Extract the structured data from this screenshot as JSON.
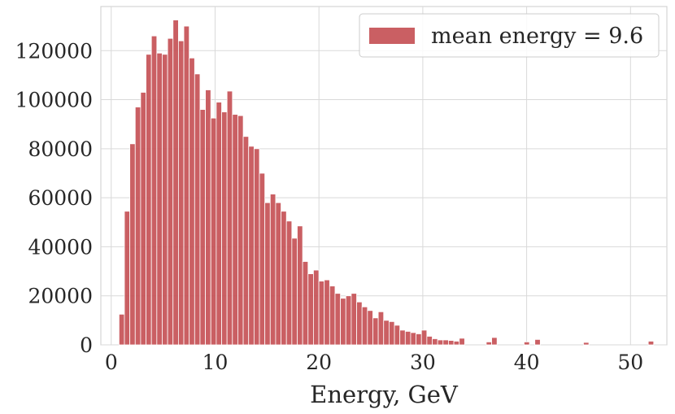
{
  "chart_data": {
    "type": "bar",
    "title": "",
    "xlabel": "Energy, GeV",
    "ylabel": "",
    "xlim": [
      -1,
      53.5
    ],
    "ylim": [
      0,
      138000
    ],
    "grid": true,
    "legend_position": "top-right",
    "x_ticks": [
      0,
      10,
      20,
      30,
      40,
      50
    ],
    "y_ticks": [
      0,
      20000,
      40000,
      60000,
      80000,
      100000,
      120000
    ],
    "bin_width": 0.52,
    "series": [
      {
        "name": "mean energy = 9.6",
        "color": "#c44e52",
        "bin_starts": [
          0.75,
          1.27,
          1.79,
          2.31,
          2.83,
          3.35,
          3.87,
          4.39,
          4.91,
          5.43,
          5.95,
          6.47,
          6.99,
          7.51,
          8.03,
          8.55,
          9.07,
          9.59,
          10.11,
          10.63,
          11.15,
          11.67,
          12.19,
          12.71,
          13.23,
          13.75,
          14.27,
          14.79,
          15.31,
          15.83,
          16.35,
          16.87,
          17.39,
          17.91,
          18.43,
          18.95,
          19.47,
          19.99,
          20.51,
          21.03,
          21.55,
          22.07,
          22.59,
          23.11,
          23.63,
          24.15,
          24.67,
          25.19,
          25.71,
          26.23,
          26.75,
          27.27,
          27.79,
          28.31,
          28.83,
          29.35,
          29.87,
          30.39,
          30.91,
          31.43,
          31.95,
          32.47,
          32.99,
          33.51,
          36.11,
          36.63,
          39.75,
          40.79,
          45.47,
          51.71
        ],
        "counts": [
          12500,
          54500,
          82000,
          97000,
          103000,
          118500,
          126000,
          119000,
          118500,
          125000,
          132500,
          124000,
          130000,
          117000,
          110500,
          96000,
          104000,
          92500,
          99000,
          95000,
          103500,
          94000,
          93500,
          85000,
          81000,
          80000,
          70000,
          58000,
          61500,
          58000,
          54500,
          50500,
          43500,
          48500,
          34000,
          29000,
          30500,
          26000,
          26500,
          24000,
          21000,
          19000,
          20000,
          21000,
          17500,
          15500,
          14000,
          11000,
          13500,
          10000,
          9500,
          8000,
          6000,
          5500,
          5000,
          4500,
          6000,
          3500,
          2500,
          2000,
          2000,
          1800,
          1500,
          2700,
          1200,
          3000,
          1200,
          2200,
          1000,
          1500
        ]
      }
    ]
  }
}
